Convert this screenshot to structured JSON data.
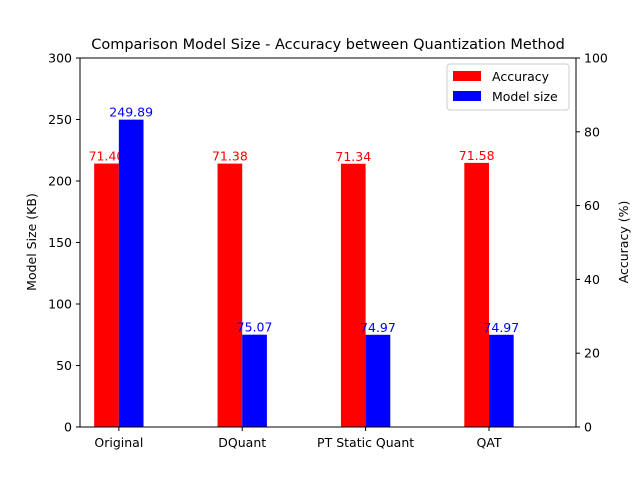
{
  "chart_data": {
    "type": "bar",
    "title": "Comparison Model Size - Accuracy between Quantization Method",
    "categories": [
      "Original",
      "DQuant",
      "PT Static Quant",
      "QAT"
    ],
    "series": [
      {
        "name": "Accuracy",
        "axis": "right",
        "color": "#ff0000",
        "values": [
          71.4,
          71.38,
          71.34,
          71.58
        ],
        "labels": [
          "71.40",
          "71.38",
          "71.34",
          "71.58"
        ]
      },
      {
        "name": "Model size",
        "axis": "left",
        "color": "#0000ff",
        "values": [
          249.89,
          75.07,
          74.97,
          74.97
        ],
        "labels": [
          "249.89",
          "75.07",
          "74.97",
          "74.97"
        ]
      }
    ],
    "ylabel": "Model Size (KB)",
    "ylim": [
      0,
      300
    ],
    "yticks": [
      "0",
      "50",
      "100",
      "150",
      "200",
      "250",
      "300"
    ],
    "y2label": "Accuracy (%)",
    "y2lim": [
      0,
      100
    ],
    "y2ticks": [
      "0",
      "20",
      "40",
      "60",
      "80",
      "100"
    ],
    "legend_position": "top-right",
    "grid": false
  }
}
